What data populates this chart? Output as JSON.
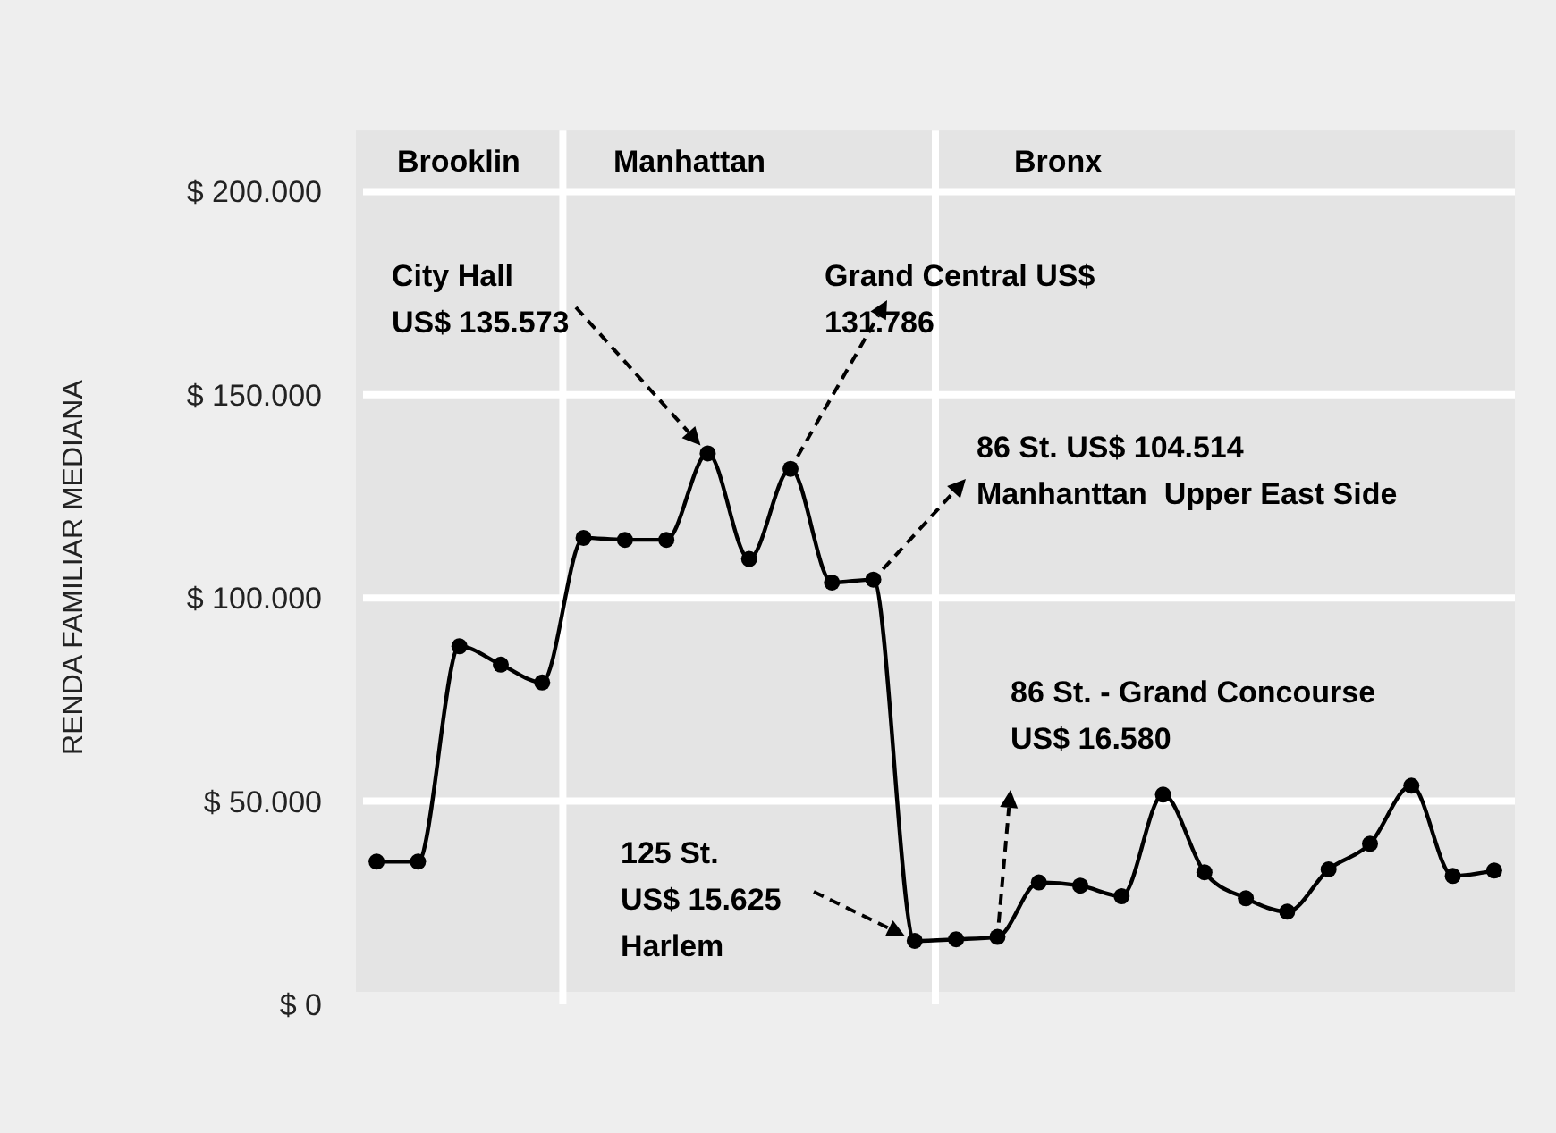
{
  "chart_data": {
    "type": "line",
    "ylabel": "RENDA FAMILIAR MEDIANA",
    "categories": [
      null,
      null,
      null,
      null,
      null,
      null,
      null,
      null,
      null,
      null,
      null,
      null,
      null,
      null,
      null,
      null,
      null,
      null,
      null,
      null,
      null,
      null,
      null,
      null,
      null,
      null,
      null,
      null
    ],
    "series": [
      {
        "color": "#000000",
        "values": [
          35100,
          35100,
          88100,
          83600,
          79200,
          114800,
          114300,
          114300,
          135573,
          109600,
          131786,
          103800,
          104514,
          15625,
          16000,
          16580,
          30000,
          29200,
          26600,
          51600,
          32500,
          26100,
          22800,
          33200,
          39500,
          53800,
          31600,
          32900
        ]
      }
    ],
    "ylim": [
      0,
      215000
    ],
    "yticks": [
      {
        "value": 0,
        "label": "$ 0"
      },
      {
        "value": 50000,
        "label": "$ 50.000"
      },
      {
        "value": 100000,
        "label": "$ 100.000"
      },
      {
        "value": 150000,
        "label": "$ 150.000"
      },
      {
        "value": 200000,
        "label": "$ 200.000"
      }
    ],
    "grid": "y",
    "marker": "circle",
    "line_style": "solid",
    "tick_labels": "y",
    "annotations": [
      "Brooklin",
      "Manhattan",
      "Bronx",
      "City Hall\nUS$ 135.573",
      "Grand Central US$\n131.786",
      "86 St. US$ 104.514\nManhanttan  Upper East Side",
      "86 St. - Grand Concourse\nUS$ 16.580",
      "125 St.\nUS$ 15.625\nHarlem"
    ]
  }
}
